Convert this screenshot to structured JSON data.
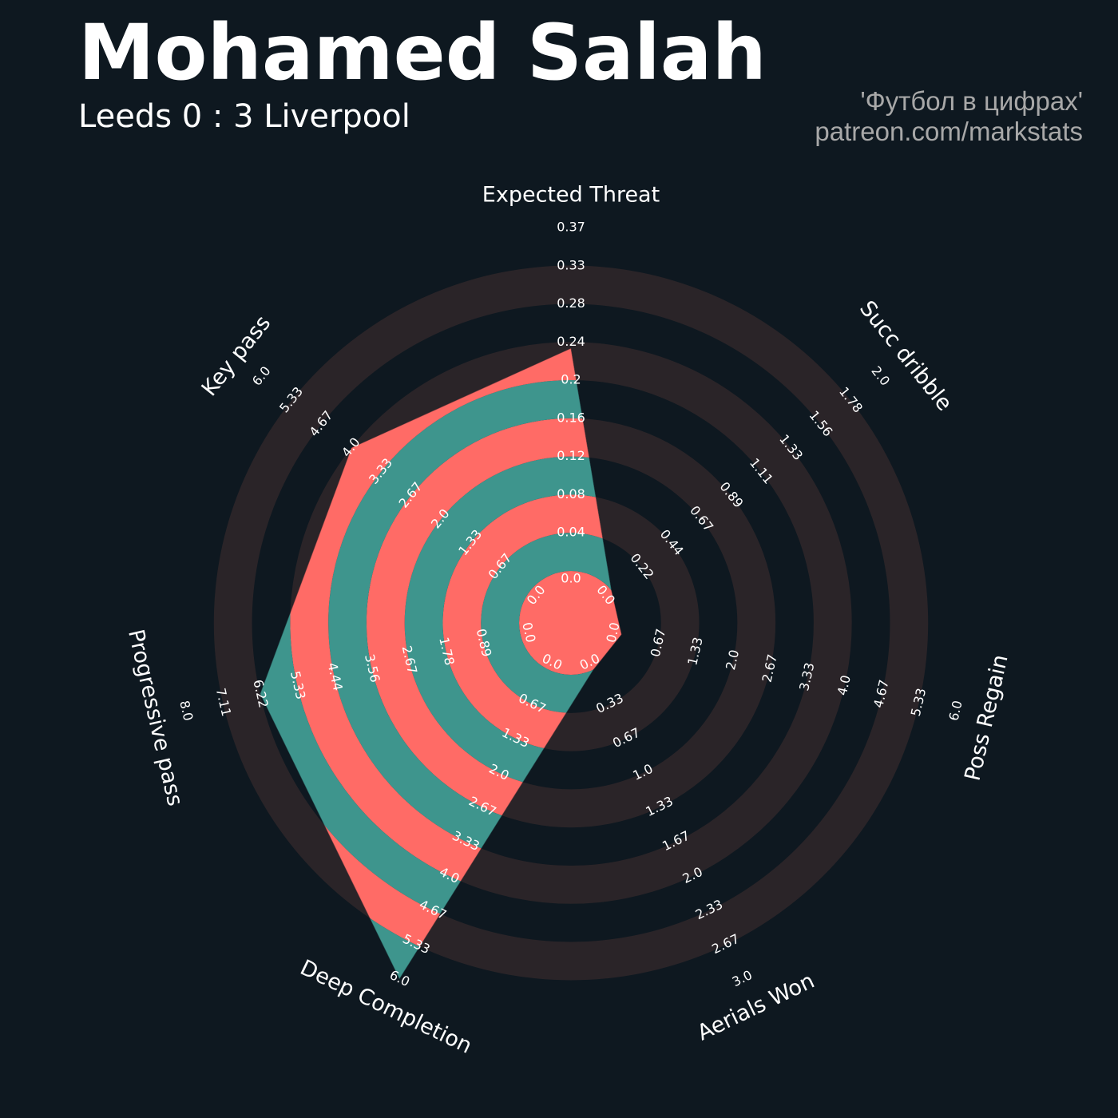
{
  "header": {
    "title": "Mohamed Salah",
    "subtitle": "Leeds 0 : 3 Liverpool",
    "credit_line1": "'Футбол в цифрах'",
    "credit_line2": "patreon.com/markstats"
  },
  "colors": {
    "background": "#0e1820",
    "ring": "#2a2428",
    "fill_a": "#ff6b66",
    "fill_b": "#3e958d",
    "label": "#ffffff"
  },
  "chart_data": {
    "type": "radar",
    "title": "",
    "axes": [
      {
        "name": "Expected Threat",
        "value": 0.24,
        "ticks": [
          "0.0",
          "0.04",
          "0.08",
          "0.12",
          "0.16",
          "0.2",
          "0.24",
          "0.28",
          "0.33",
          "0.37"
        ]
      },
      {
        "name": "Succ dribble",
        "value": 0.0,
        "ticks": [
          "0.0",
          "0.22",
          "0.44",
          "0.67",
          "0.89",
          "1.11",
          "1.33",
          "1.56",
          "1.78",
          "2.0"
        ]
      },
      {
        "name": "Poss Regain",
        "value": 0.0,
        "ticks": [
          "0.0",
          "0.67",
          "1.33",
          "2.0",
          "2.67",
          "3.33",
          "4.0",
          "4.67",
          "5.33",
          "6.0"
        ]
      },
      {
        "name": "Aerials Won",
        "value": 0.0,
        "ticks": [
          "0.0",
          "0.33",
          "0.67",
          "1.0",
          "1.33",
          "1.67",
          "2.0",
          "2.33",
          "2.67",
          "3.0"
        ]
      },
      {
        "name": "Deep Completion",
        "value": 6.0,
        "ticks": [
          "0.0",
          "0.67",
          "1.33",
          "2.0",
          "2.67",
          "3.33",
          "4.0",
          "4.67",
          "5.33",
          "6.0"
        ]
      },
      {
        "name": "Progressive pass",
        "value": 6.22,
        "ticks": [
          "0.0",
          "0.89",
          "1.78",
          "2.67",
          "3.56",
          "4.44",
          "5.33",
          "6.22",
          "7.11",
          "8.0"
        ]
      },
      {
        "name": "Key pass",
        "value": 4.0,
        "ticks": [
          "0.0",
          "0.67",
          "1.33",
          "2.0",
          "2.67",
          "3.33",
          "4.0",
          "4.67",
          "5.33",
          "6.0"
        ]
      }
    ]
  }
}
